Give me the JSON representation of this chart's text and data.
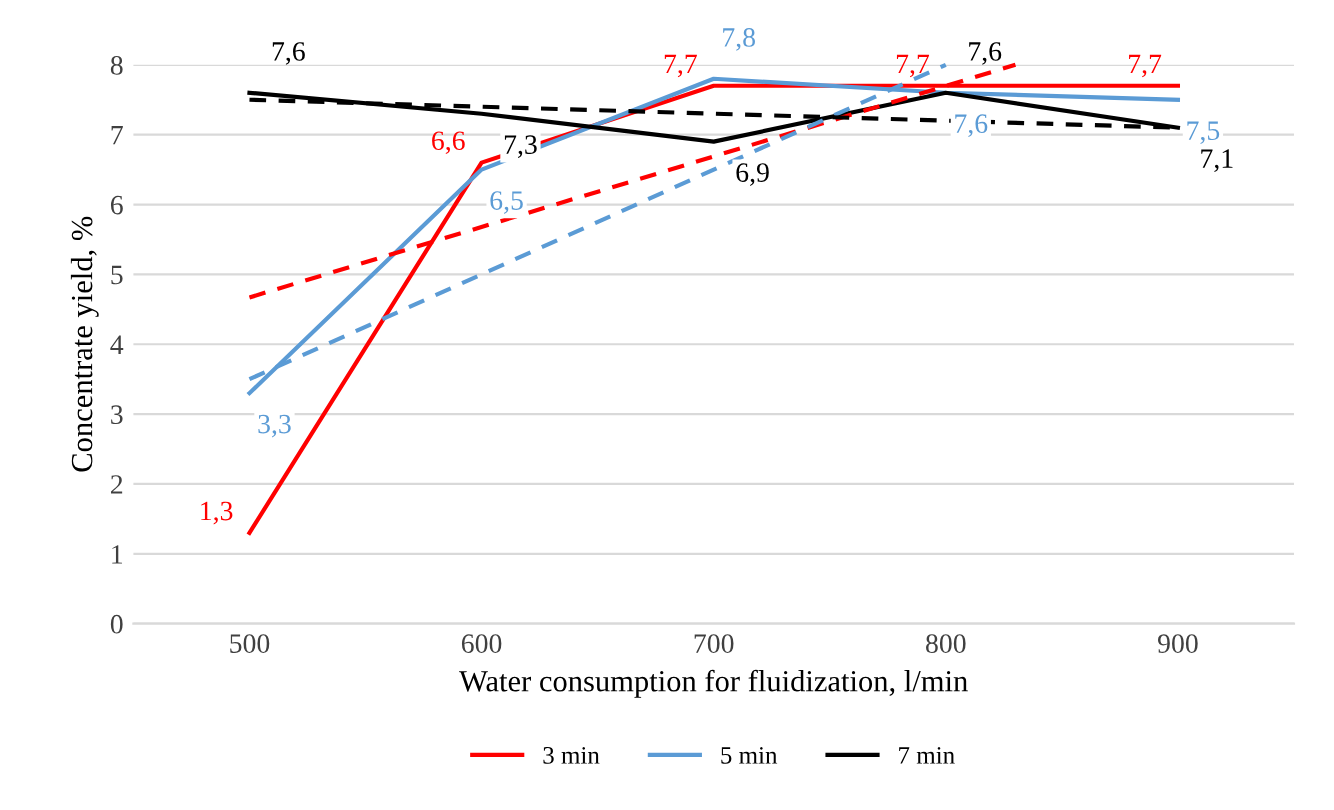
{
  "chart_data": {
    "type": "line",
    "xlabel": "Water consumption for fluidization, l/min",
    "ylabel": "Concentrate yield, %",
    "xlim": [
      450,
      950
    ],
    "xticks": [
      500,
      600,
      700,
      800,
      900
    ],
    "ylim": [
      0,
      8
    ],
    "yticks": [
      0,
      1,
      2,
      3,
      4,
      5,
      6,
      7,
      8
    ],
    "grid": "y",
    "legend": "bottom",
    "marker": "none",
    "series": [
      {
        "name": "3 min",
        "color": "#ff0000",
        "x": [
          500,
          600,
          700,
          800,
          900
        ],
        "values": [
          1.3,
          6.6,
          7.7,
          7.7,
          7.7
        ],
        "value_labels": [
          "1,3",
          "6,6",
          "7,7",
          "7,7",
          "7,7"
        ],
        "line_style": "solid"
      },
      {
        "name": "5 min",
        "color": "#5b9bd5",
        "x": [
          500,
          600,
          700,
          800,
          900
        ],
        "values": [
          3.3,
          6.5,
          7.8,
          7.6,
          7.5
        ],
        "value_labels": [
          "3,3",
          "6,5",
          "7,8",
          "7,6",
          "7,5"
        ],
        "line_style": "solid"
      },
      {
        "name": "7 min",
        "color": "#000000",
        "x": [
          500,
          600,
          700,
          800,
          900
        ],
        "values": [
          7.6,
          7.3,
          6.9,
          7.6,
          7.1
        ],
        "value_labels": [
          "7,6",
          "7,3",
          "6,9",
          "7,6",
          "7,1"
        ],
        "line_style": "solid"
      },
      {
        "color": "#ff0000",
        "x": [
          500,
          830
        ],
        "values": [
          4.67,
          8.0
        ],
        "line_style": "dashed"
      },
      {
        "color": "#5b9bd5",
        "x": [
          500,
          800
        ],
        "values": [
          3.5,
          8.0
        ],
        "line_style": "dashed"
      },
      {
        "color": "#000000",
        "x": [
          500,
          900
        ],
        "values": [
          7.5,
          7.1
        ],
        "line_style": "dashed"
      }
    ]
  }
}
